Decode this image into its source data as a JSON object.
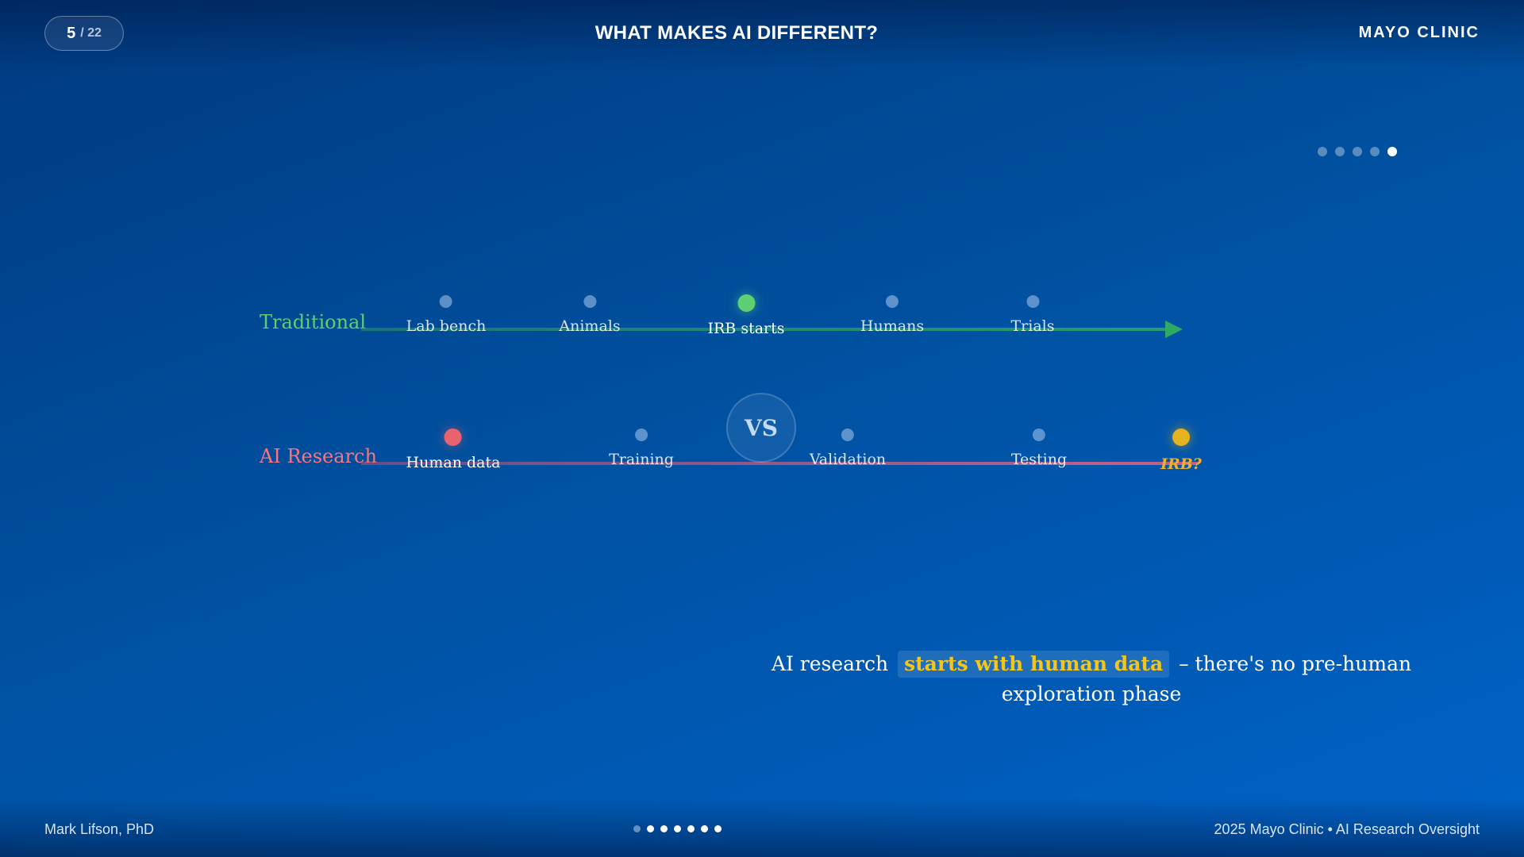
{
  "header": {
    "slide_current": "5",
    "slide_total": "/ 22",
    "title": "WHAT MAKES AI DIFFERENT?",
    "brand": "MAYO CLINIC"
  },
  "step_indicator": {
    "count": 5,
    "active_index": 4
  },
  "traditional": {
    "label": "Traditional",
    "steps": [
      "Lab bench",
      "Animals",
      "IRB starts",
      "Humans",
      "Trials"
    ]
  },
  "ai_research": {
    "label": "AI Research",
    "steps": [
      "Human data",
      "Training",
      "Validation",
      "Testing",
      "IRB?"
    ]
  },
  "vs_label": "VS",
  "caption": {
    "prefix": "AI research",
    "highlight": "starts with human data",
    "suffix": "– there's no pre-human exploration phase"
  },
  "footer": {
    "author": "Mark Lifson, PhD",
    "copyright": "2025 Mayo Clinic • AI Research Oversight",
    "nav_dots": 7,
    "nav_active_index": 0
  },
  "colors": {
    "traditional": "#5fcf74",
    "ai": "#ff7380",
    "highlight": "#f5c518",
    "irb_question": "#f0b22a"
  }
}
